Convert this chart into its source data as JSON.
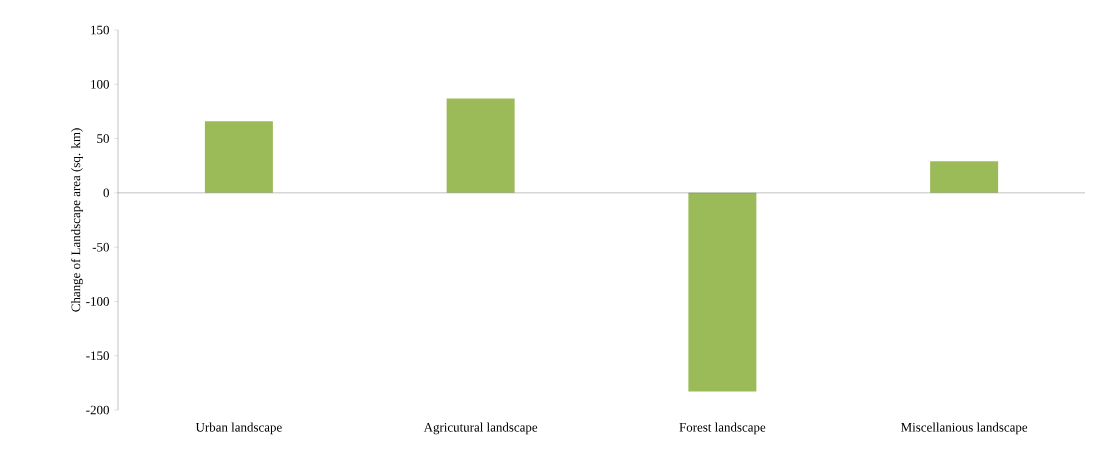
{
  "chart_data": {
    "type": "bar",
    "ylabel": "Change of Landscape area (sq. km)",
    "categories": [
      "Urban landscape",
      "Agricutural landscape",
      "Forest landscape",
      "Miscellanious landscape"
    ],
    "values": [
      66,
      87,
      -183,
      29
    ],
    "color": "#9bbb59",
    "ylim": [
      -200,
      150
    ],
    "yticks": [
      -200,
      -150,
      -100,
      -50,
      0,
      50,
      100,
      150
    ]
  }
}
